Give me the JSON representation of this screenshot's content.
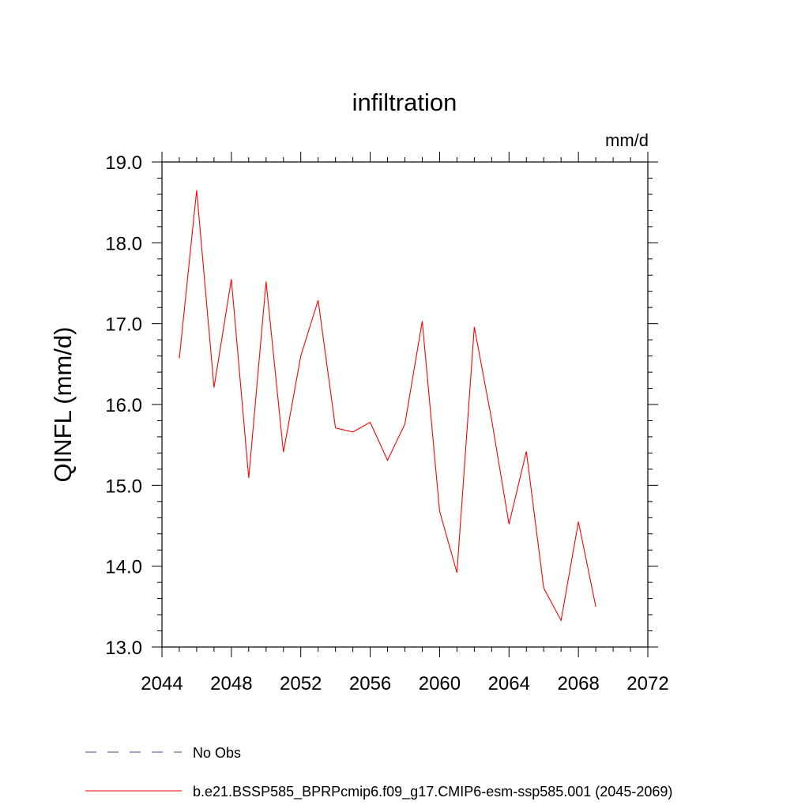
{
  "chart_data": {
    "type": "line",
    "title": "infiltration",
    "units_label": "mm/d",
    "xlabel": "",
    "ylabel": "QINFL  (mm/d)",
    "xlim": [
      2044,
      2072
    ],
    "ylim": [
      13.0,
      19.0
    ],
    "x_ticks": [
      2044,
      2048,
      2052,
      2056,
      2060,
      2064,
      2068,
      2072
    ],
    "x_tick_labels": [
      "2044",
      "2048",
      "2052",
      "2056",
      "2060",
      "2064",
      "2068",
      "2072"
    ],
    "y_ticks": [
      13.0,
      14.0,
      15.0,
      16.0,
      17.0,
      18.0,
      19.0
    ],
    "y_tick_labels": [
      "13.0",
      "14.0",
      "15.0",
      "16.0",
      "17.0",
      "18.0",
      "19.0"
    ],
    "grid": false,
    "legend_position": "bottom",
    "series": [
      {
        "name": "b.e21.BSSP585_BPRPcmip6.f09_g17.CMIP6-esm-ssp585.001 (2045-2069)",
        "color": "#ff0000",
        "x": [
          2045,
          2046,
          2047,
          2048,
          2049,
          2050,
          2051,
          2052,
          2053,
          2054,
          2055,
          2056,
          2057,
          2058,
          2059,
          2060,
          2061,
          2062,
          2063,
          2064,
          2065,
          2066,
          2067,
          2068,
          2069
        ],
        "values": [
          16.57,
          18.65,
          16.21,
          17.55,
          15.09,
          17.52,
          15.41,
          16.6,
          17.29,
          15.71,
          15.66,
          15.78,
          15.31,
          15.76,
          17.03,
          14.68,
          13.92,
          16.96,
          15.81,
          14.52,
          15.42,
          13.73,
          13.33,
          14.55,
          13.5
        ]
      }
    ],
    "legend": [
      {
        "label": "No Obs",
        "color": "#5a3f9e",
        "style": "dashed"
      },
      {
        "label": "b.e21.BSSP585_BPRPcmip6.f09_g17.CMIP6-esm-ssp585.001 (2045-2069)",
        "color": "#ff0000",
        "style": "solid"
      }
    ]
  }
}
